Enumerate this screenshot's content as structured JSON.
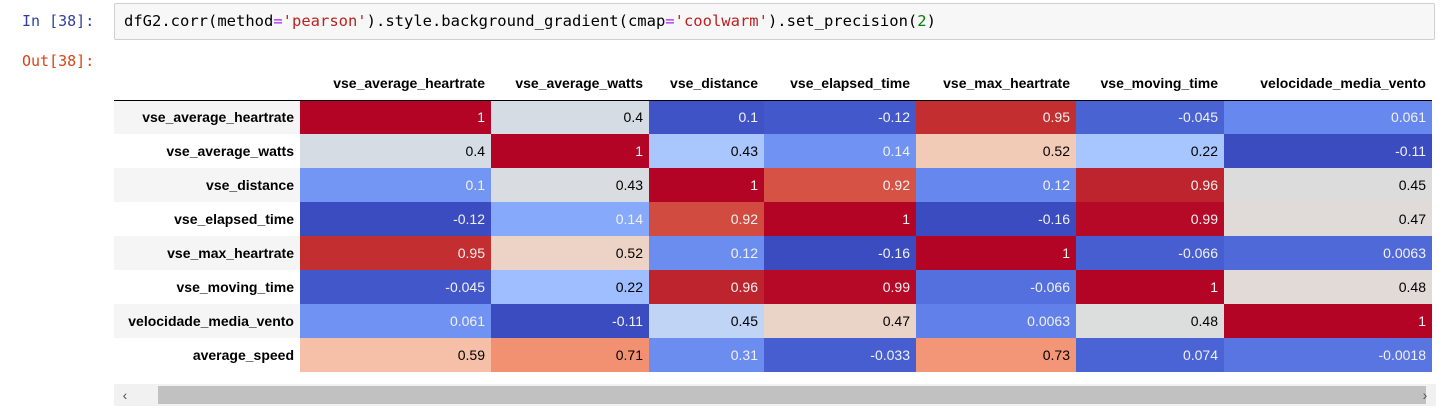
{
  "notebook": {
    "in_prompt": "In [38]:",
    "out_prompt": "Out[38]:",
    "code": {
      "p1": "dfG2.corr(method",
      "p2": "=",
      "p3": "'pearson'",
      "p4": ").style.background_gradient(cmap",
      "p5": "=",
      "p6": "'coolwarm'",
      "p7": ").set_precision(",
      "p8": "2",
      "p9": ")"
    }
  },
  "table": {
    "columns": [
      "vse_average_heartrate",
      "vse_average_watts",
      "vse_distance",
      "vse_elapsed_time",
      "vse_max_heartrate",
      "vse_moving_time",
      "velocidade_media_vento"
    ],
    "rows": [
      {
        "label": "vse_average_heartrate",
        "values": [
          "1",
          "0.4",
          "0.1",
          "-0.12",
          "0.95",
          "-0.045",
          "0.061"
        ],
        "bg": [
          "#b40426",
          "#d6dce4",
          "#3f53c6",
          "#4358cb",
          "#c32e31",
          "#4a63d3",
          "#6788ee"
        ]
      },
      {
        "label": "vse_average_watts",
        "values": [
          "0.4",
          "1",
          "0.43",
          "0.14",
          "0.52",
          "0.22",
          "-0.11"
        ],
        "bg": [
          "#d6dce4",
          "#b40426",
          "#a9c6fd",
          "#6f92f3",
          "#f2cbb7",
          "#a7c5fe",
          "#3b4cc0"
        ]
      },
      {
        "label": "vse_distance",
        "values": [
          "0.1",
          "0.43",
          "1",
          "0.92",
          "0.12",
          "0.96",
          "0.45"
        ],
        "bg": [
          "#7396f5",
          "#d9dce1",
          "#b40426",
          "#d65244",
          "#6687ed",
          "#be242e",
          "#dddcdc"
        ]
      },
      {
        "label": "vse_elapsed_time",
        "values": [
          "-0.12",
          "0.14",
          "0.92",
          "1",
          "-0.16",
          "0.99",
          "0.47"
        ],
        "bg": [
          "#3b4cc0",
          "#86a9fc",
          "#d24b40",
          "#b40426",
          "#3b4cc0",
          "#b50927",
          "#e0dbd8"
        ]
      },
      {
        "label": "vse_max_heartrate",
        "values": [
          "0.95",
          "0.52",
          "0.12",
          "-0.16",
          "1",
          "-0.066",
          "0.0063"
        ],
        "bg": [
          "#c32e31",
          "#ecd3c5",
          "#6b8df0",
          "#3b4cc0",
          "#b40426",
          "#465ecf",
          "#4f69d9"
        ]
      },
      {
        "label": "vse_moving_time",
        "values": [
          "-0.045",
          "0.22",
          "0.96",
          "0.99",
          "-0.066",
          "1",
          "0.48"
        ],
        "bg": [
          "#4257c9",
          "#9ebeff",
          "#be242e",
          "#b50927",
          "#5470de",
          "#b40426",
          "#e1dad6"
        ]
      },
      {
        "label": "velocidade_media_vento",
        "values": [
          "0.061",
          "-0.11",
          "0.45",
          "0.47",
          "0.0063",
          "0.48",
          "1"
        ],
        "bg": [
          "#7093f3",
          "#3b4cc0",
          "#c0d4f5",
          "#ead4c8",
          "#6180e9",
          "#dcdddd",
          "#b40426"
        ]
      },
      {
        "label": "average_speed",
        "values": [
          "0.59",
          "0.71",
          "0.31",
          "-0.033",
          "0.73",
          "0.074",
          "-0.0018"
        ],
        "bg": [
          "#f5c0a7",
          "#f29072",
          "#6b8df0",
          "#465ecf",
          "#f39577",
          "#4b64d5",
          "#5875e1"
        ]
      }
    ],
    "dark_text_colors": [
      "#d6dce4",
      "#d9dce1",
      "#dddcdc",
      "#e0dbd8",
      "#ecd3c5",
      "#f2cbb7",
      "#e1dad6",
      "#c0d4f5",
      "#ead4c8",
      "#dcdddd",
      "#a9c6fd",
      "#a7c5fe",
      "#9ebeff",
      "#f5c0a7",
      "#f29072",
      "#f39577"
    ]
  },
  "scrollbar": {
    "left_arrow_icon": "chevron-left-icon",
    "right_arrow_icon": "chevron-right-icon"
  }
}
